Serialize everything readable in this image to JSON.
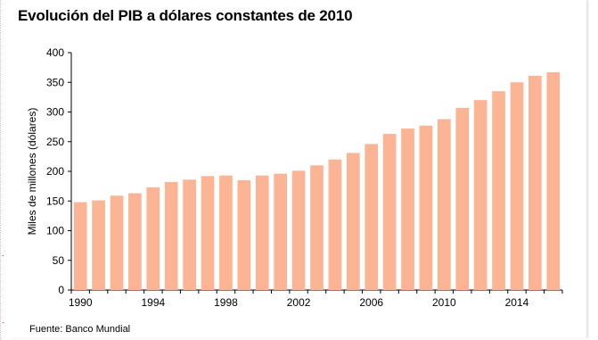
{
  "chart_data": {
    "type": "bar",
    "title": "Evolución del PIB a dólares constantes de 2010",
    "ylabel": "Miles de millones (dólares)",
    "xlabel": "",
    "source": "Fuente: Banco Mundial",
    "ylim": [
      0,
      400
    ],
    "yticks": [
      "0",
      "50",
      "100",
      "150",
      "200",
      "250",
      "300",
      "350",
      "400"
    ],
    "xtick_labels": [
      "1990",
      "1994",
      "1998",
      "2002",
      "2006",
      "2010",
      "2014"
    ],
    "categories": [
      "1990",
      "1991",
      "1992",
      "1993",
      "1994",
      "1995",
      "1996",
      "1997",
      "1998",
      "1999",
      "2000",
      "2001",
      "2002",
      "2003",
      "2004",
      "2005",
      "2006",
      "2007",
      "2008",
      "2009",
      "2010",
      "2011",
      "2012",
      "2013",
      "2014",
      "2015",
      "2016"
    ],
    "values": [
      148,
      151,
      159,
      163,
      173,
      182,
      186,
      192,
      193,
      185,
      193,
      196,
      201,
      210,
      220,
      231,
      246,
      263,
      272,
      277,
      288,
      307,
      320,
      335,
      350,
      361,
      367
    ],
    "bar_color": "#fbb494",
    "grid": false,
    "legend": "none"
  }
}
